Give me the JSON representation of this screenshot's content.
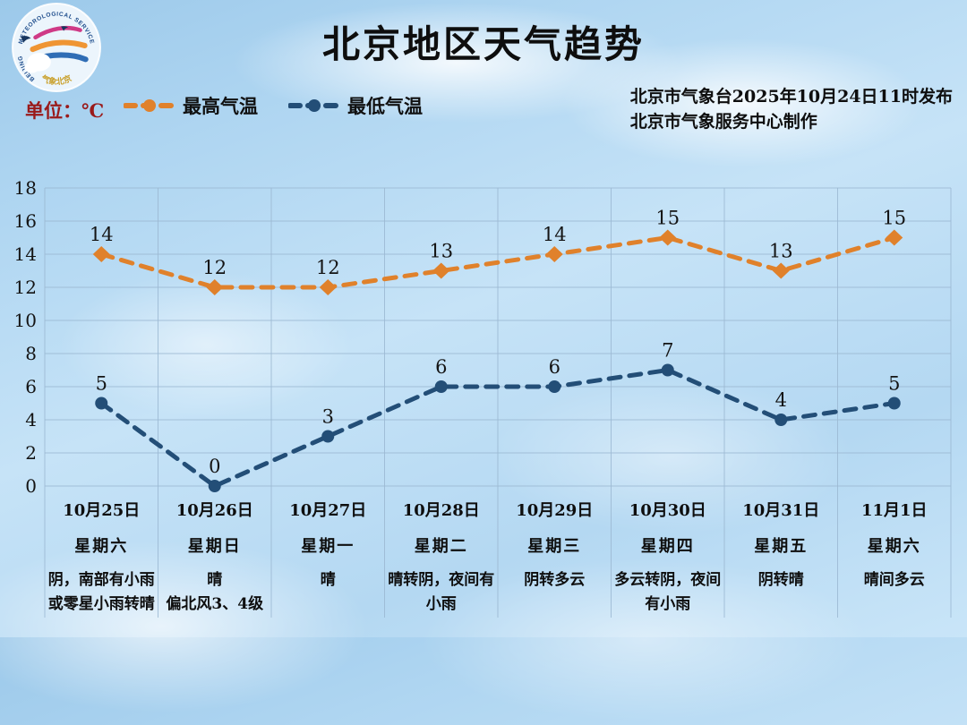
{
  "header": {
    "title": "北京地区天气趋势",
    "unit_label": "单位：℃",
    "publisher_line1": "北京市气象台2025年10月24日11时发布",
    "publisher_line2": "北京市气象服务中心制作",
    "logo_top_text": "METEOROLOGICAL SERVICE",
    "logo_left_text": "BEIJING",
    "logo_bottom_text": "气象北京"
  },
  "legend": {
    "high": {
      "label": "最高气温",
      "color": "#E0812B"
    },
    "low": {
      "label": "最低气温",
      "color": "#234E77"
    }
  },
  "chart_data": {
    "type": "line",
    "title": "北京地区天气趋势",
    "ylabel": "℃",
    "xlabel": "",
    "ylim": [
      0,
      18
    ],
    "ytick_step": 2,
    "grid": true,
    "line_style": "dashed",
    "legend_position": "top-left",
    "categories": [
      {
        "date": "10月25日",
        "weekday": "星期六",
        "weather": "阴，南部有小雨或零星小雨转晴"
      },
      {
        "date": "10月26日",
        "weekday": "星期日",
        "weather": "晴\n偏北风3、4级"
      },
      {
        "date": "10月27日",
        "weekday": "星期一",
        "weather": "晴"
      },
      {
        "date": "10月28日",
        "weekday": "星期二",
        "weather": "晴转阴，夜间有小雨"
      },
      {
        "date": "10月29日",
        "weekday": "星期三",
        "weather": "阴转多云"
      },
      {
        "date": "10月30日",
        "weekday": "星期四",
        "weather": "多云转阴，夜间有小雨"
      },
      {
        "date": "10月31日",
        "weekday": "星期五",
        "weather": "阴转晴"
      },
      {
        "date": "11月1日",
        "weekday": "星期六",
        "weather": "晴间多云"
      }
    ],
    "series": [
      {
        "name": "最高气温",
        "color": "#E0812B",
        "marker": "diamond",
        "values": [
          14,
          12,
          12,
          13,
          14,
          15,
          13,
          15
        ]
      },
      {
        "name": "最低气温",
        "color": "#234E77",
        "marker": "circle",
        "values": [
          5,
          0,
          3,
          6,
          6,
          7,
          4,
          5
        ]
      }
    ]
  }
}
